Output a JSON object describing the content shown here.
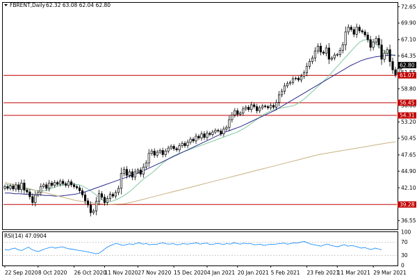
{
  "header": {
    "symbol": "FBRENT,Daily",
    "ohlc": "62.32 63.08 62.04 62.80"
  },
  "rsi": {
    "label": "RSI(14) 47.0904",
    "ticks": [
      100,
      70,
      30,
      0
    ],
    "tick_labels": [
      "100",
      "70",
      "30",
      "0"
    ],
    "color": "#1e90ff"
  },
  "colors": {
    "bg": "#ffffff",
    "candle": "#000000",
    "level_line": "#c00000",
    "ma_short": "#7fc8a0",
    "ma_mid": "#2a2a8c",
    "ma_long": "#c8b080",
    "price_tag": "#000000",
    "level_tag": "#c00000"
  },
  "chart_data": {
    "type": "candlestick",
    "title": "FBRENT,Daily",
    "ylim": [
      35.2,
      73.2
    ],
    "y_ticks": [
      72.65,
      69.9,
      67.1,
      64.35,
      61.55,
      58.8,
      56.0,
      53.2,
      50.45,
      47.65,
      44.9,
      42.1,
      39.35,
      36.55
    ],
    "y_tick_labels": [
      "72.65",
      "69.90",
      "67.10",
      "64.35",
      "61.55",
      "58.80",
      "56.00",
      "53.20",
      "50.45",
      "47.65",
      "44.90",
      "42.10",
      "39.35",
      "36.55"
    ],
    "x_ticks": [
      "22 Sep 2020",
      "8 Oct 2020",
      "26 Oct 2020",
      "11 Nov 2020",
      "27 Nov 2020",
      "15 Dec 2020",
      "4 Jan 2021",
      "20 Jan 2021",
      "5 Feb 2021",
      "23 Feb 2021",
      "11 Mar 2021",
      "29 Mar 2021"
    ],
    "x_tick_positions": [
      0,
      12,
      25,
      36,
      48,
      61,
      73,
      84,
      96,
      109,
      120,
      133
    ],
    "n_bars": 142,
    "levels": [
      61.07,
      56.45,
      54.31,
      39.28
    ],
    "level_labels": [
      "61.07",
      "56.45",
      "54.31",
      "39.28"
    ],
    "last_price": 62.8,
    "last_price_label": "62.80",
    "series": [
      {
        "role": "close",
        "color": "#000000",
        "values": [
          42.3,
          42.0,
          42.4,
          41.9,
          42.6,
          41.8,
          42.9,
          41.7,
          41.4,
          40.6,
          39.6,
          40.9,
          41.3,
          42.3,
          42.6,
          42.0,
          42.9,
          42.5,
          43.0,
          42.7,
          43.2,
          42.8,
          42.5,
          43.1,
          42.6,
          42.3,
          42.1,
          41.6,
          40.9,
          39.9,
          39.2,
          37.9,
          38.2,
          39.8,
          41.1,
          40.5,
          39.6,
          40.3,
          41.0,
          40.7,
          41.3,
          42.0,
          44.5,
          45.2,
          44.2,
          44.8,
          43.9,
          44.8,
          45.1,
          44.4,
          45.6,
          46.3,
          47.9,
          48.3,
          47.6,
          48.1,
          48.4,
          47.7,
          48.3,
          48.8,
          49.1,
          48.7,
          48.5,
          49.2,
          49.6,
          49.2,
          49.8,
          50.3,
          50.0,
          50.8,
          50.5,
          51.2,
          50.6,
          51.3,
          51.1,
          51.5,
          51.8,
          51.7,
          51.2,
          52.0,
          52.3,
          53.6,
          54.4,
          55.1,
          54.5,
          54.7,
          55.4,
          55.7,
          55.3,
          56.1,
          55.8,
          55.1,
          55.6,
          55.9,
          55.8,
          55.6,
          56.0,
          55.7,
          56.5,
          57.8,
          58.4,
          59.3,
          59.7,
          59.9,
          60.5,
          60.6,
          60.3,
          60.9,
          61.5,
          62.6,
          63.4,
          64.0,
          65.2,
          66.0,
          65.0,
          64.8,
          65.7,
          63.8,
          64.0,
          64.5,
          64.6,
          65.3,
          66.2,
          68.4,
          69.2,
          68.8,
          68.0,
          69.2,
          68.6,
          68.4,
          67.9,
          67.1,
          65.8,
          66.7,
          67.3,
          66.2,
          63.8,
          64.8,
          65.4,
          63.4,
          62.0,
          61.2,
          62.2,
          62.8
        ]
      },
      {
        "role": "ma_short",
        "color": "#7fc8a0",
        "values": [
          42.8,
          42.6,
          42.4,
          42.3,
          42.2,
          42.1,
          42.0,
          41.9,
          41.8,
          41.7,
          41.6,
          41.6,
          41.6,
          41.7,
          41.9,
          42.1,
          42.3,
          42.5,
          42.6,
          42.7,
          42.8,
          42.8,
          42.7,
          42.6,
          42.4,
          42.1,
          41.8,
          41.4,
          41.0,
          40.5,
          40.1,
          39.8,
          39.7,
          39.8,
          40.0,
          40.2,
          40.5,
          40.8,
          41.2,
          41.6,
          42.1,
          42.6,
          43.1,
          43.6,
          44.0,
          44.4,
          44.8,
          45.3,
          45.8,
          46.3,
          46.7,
          47.1,
          47.4,
          47.7,
          47.9,
          48.1,
          48.3,
          48.5,
          48.7,
          48.9,
          49.1,
          49.3,
          49.5,
          49.7,
          49.9,
          50.1,
          50.3,
          50.5,
          50.7,
          50.9,
          51.1,
          51.3,
          51.5,
          51.8,
          52.1,
          52.4,
          52.8,
          53.2,
          53.6,
          54.0,
          54.4,
          54.7,
          55.0,
          55.2,
          55.4,
          55.5,
          55.6,
          55.7,
          55.8,
          55.9,
          56.1,
          56.4,
          56.8,
          57.2,
          57.7,
          58.2,
          58.7,
          59.2,
          59.7,
          60.2,
          60.8,
          61.4,
          62.0,
          62.6,
          63.2,
          63.8,
          64.4,
          65.0,
          65.6,
          66.2,
          66.7,
          67.0,
          67.1,
          67.0,
          66.7,
          66.3,
          65.8,
          65.4,
          65.0,
          64.7,
          64.5,
          64.3
        ]
      },
      {
        "role": "ma_mid",
        "color": "#2a2a8c",
        "values": [
          41.2,
          41.2,
          41.1,
          41.1,
          41.0,
          41.0,
          40.9,
          40.9,
          40.8,
          40.8,
          40.7,
          40.7,
          40.8,
          40.9,
          41.0,
          41.2,
          41.4,
          41.7,
          42.0,
          42.3,
          42.6,
          42.9,
          43.2,
          43.5,
          43.8,
          44.1,
          44.4,
          44.7,
          45.1,
          45.5,
          45.9,
          46.3,
          46.7,
          47.1,
          47.5,
          47.9,
          48.3,
          48.7,
          49.1,
          49.5,
          49.9,
          50.3,
          50.7,
          51.1,
          51.5,
          51.8,
          52.1,
          52.4,
          52.8,
          53.2,
          53.6,
          54.0,
          54.4,
          54.8,
          55.2,
          55.7,
          56.2,
          56.7,
          57.2,
          57.7,
          58.2,
          58.7,
          59.2,
          59.7,
          60.2,
          60.7,
          61.2,
          61.7,
          62.2,
          62.7,
          63.1,
          63.5,
          63.8,
          64.0,
          64.2,
          64.3,
          64.4,
          64.5,
          64.5
        ]
      },
      {
        "role": "ma_long",
        "color": "#c8b080",
        "values": [
          43.0,
          42.7,
          42.4,
          42.1,
          41.8,
          41.5,
          41.2,
          40.9,
          40.6,
          40.3,
          40.0,
          39.8,
          39.6,
          39.5,
          39.4,
          39.3,
          39.35,
          39.4,
          39.6,
          39.9,
          40.2,
          40.5,
          40.8,
          41.1,
          41.4,
          41.7,
          42.0,
          42.3,
          42.6,
          42.9,
          43.2,
          43.5,
          43.8,
          44.1,
          44.4,
          44.7,
          45.0,
          45.3,
          45.6,
          45.9,
          46.2,
          46.5,
          46.8,
          47.1,
          47.4,
          47.7,
          47.9,
          48.1,
          48.3,
          48.5,
          48.7,
          48.9,
          49.1,
          49.3,
          49.5,
          49.7,
          49.85
        ]
      },
      {
        "role": "rsi",
        "color": "#1e90ff",
        "values": [
          48,
          46,
          50,
          52,
          47,
          45,
          50,
          55,
          48,
          44,
          42,
          46,
          50,
          53,
          55,
          52,
          54,
          56,
          53,
          50,
          49,
          47,
          45,
          44,
          42,
          40,
          38,
          35,
          37,
          44,
          52,
          58,
          62,
          66,
          64,
          60,
          62,
          65,
          63,
          66,
          68,
          64,
          66,
          62,
          64,
          63,
          66,
          68,
          65,
          64,
          66,
          62,
          63,
          66,
          64,
          65,
          66,
          68,
          64,
          66,
          67,
          63,
          64,
          66,
          65,
          63,
          66,
          64,
          68,
          66,
          64,
          67,
          65,
          66,
          62,
          63,
          64,
          60,
          62,
          64,
          63,
          65,
          66,
          67,
          64,
          66,
          68,
          67,
          70,
          72,
          68,
          64,
          62,
          60,
          58,
          62,
          64,
          60,
          58,
          56,
          60,
          62,
          58,
          60,
          58,
          55,
          52,
          54,
          50,
          48,
          52,
          50,
          47
        ]
      }
    ]
  }
}
